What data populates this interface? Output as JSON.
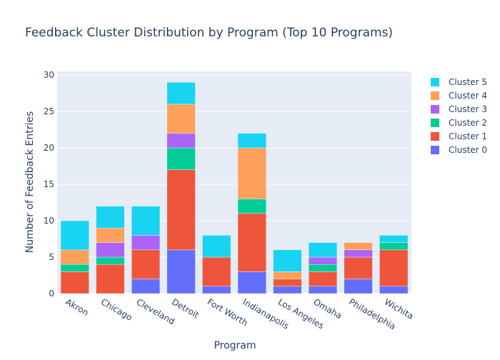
{
  "chart_data": {
    "type": "bar",
    "stacked": true,
    "title": "Feedback Cluster Distribution by Program (Top 10 Programs)",
    "xlabel": "Program",
    "ylabel": "Number of Feedback Entries",
    "ylim": [
      0,
      30.5
    ],
    "yticks": [
      0,
      5,
      10,
      15,
      20,
      25,
      30
    ],
    "grid": true,
    "legend_position": "top-right",
    "background_color": "#e5ecf6",
    "categories": [
      "Akron",
      "Chicago",
      "Cleveland",
      "Detroit",
      "Fort Worth",
      "Indianapolis",
      "Los Angeles",
      "Omaha",
      "Philadelphia",
      "Wichita"
    ],
    "series": [
      {
        "name": "Cluster 0",
        "color": "#636efa",
        "values": [
          0,
          0,
          2,
          6,
          1,
          3,
          1,
          1,
          2,
          1
        ]
      },
      {
        "name": "Cluster 1",
        "color": "#ef553b",
        "values": [
          3,
          4,
          4,
          11,
          4,
          8,
          1,
          2,
          3,
          5
        ]
      },
      {
        "name": "Cluster 2",
        "color": "#00cc96",
        "values": [
          1,
          1,
          0,
          3,
          0,
          2,
          0,
          1,
          0,
          1
        ]
      },
      {
        "name": "Cluster 3",
        "color": "#ab63fa",
        "values": [
          0,
          2,
          2,
          2,
          0,
          0,
          0,
          1,
          1,
          0
        ]
      },
      {
        "name": "Cluster 4",
        "color": "#ffa15a",
        "values": [
          2,
          2,
          0,
          4,
          0,
          7,
          1,
          0,
          1,
          0
        ]
      },
      {
        "name": "Cluster 5",
        "color": "#19d3f3",
        "values": [
          4,
          3,
          4,
          3,
          3,
          2,
          3,
          2,
          0,
          1
        ]
      }
    ]
  }
}
